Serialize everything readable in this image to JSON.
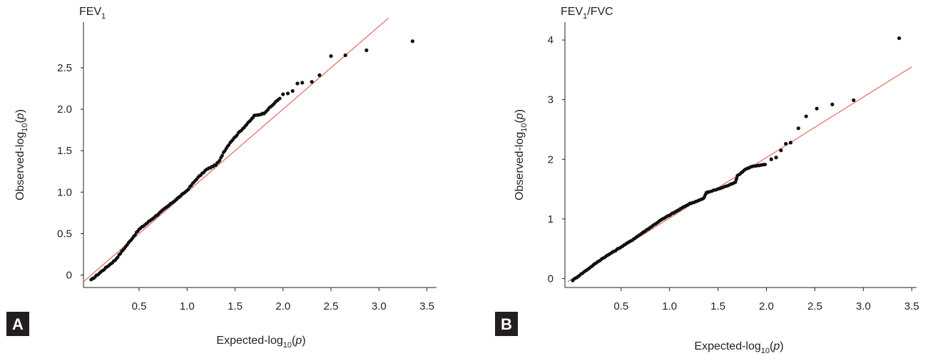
{
  "chart_data": [
    {
      "panel_label": "A",
      "type": "scatter",
      "title": "FEV",
      "title_sub": "1",
      "title_tail": "",
      "xlabel": {
        "pre": "Expected-log",
        "sub": "10",
        "post": "(",
        "var": "p",
        "close": ")"
      },
      "ylabel": {
        "pre": "Observed-log",
        "sub": "10",
        "post": "(",
        "var": "p",
        "close": ")"
      },
      "xlim": [
        -0.08,
        3.6
      ],
      "ylim": [
        -0.15,
        3.05
      ],
      "xticks": [
        "0.5",
        "1.0",
        "1.5",
        "2.0",
        "2.5",
        "3.0",
        "3.5"
      ],
      "xtick_values": [
        0.5,
        1.0,
        1.5,
        2.0,
        2.5,
        3.0,
        3.5
      ],
      "yticks": [
        "0",
        "0.5",
        "1.0",
        "1.5",
        "2.0",
        "2.5"
      ],
      "ytick_values": [
        0,
        0.5,
        1.0,
        1.5,
        2.0,
        2.5
      ],
      "reference_line": {
        "x": [
          -0.08,
          3.1
        ],
        "y": [
          -0.08,
          3.1
        ],
        "color": "#e06b60"
      },
      "point_color": "#111111",
      "trend": [
        [
          0.0,
          -0.06
        ],
        [
          0.25,
          0.18
        ],
        [
          0.5,
          0.55
        ],
        [
          0.8,
          0.83
        ],
        [
          1.0,
          1.02
        ],
        [
          1.1,
          1.16
        ],
        [
          1.2,
          1.27
        ],
        [
          1.3,
          1.33
        ],
        [
          1.34,
          1.38
        ],
        [
          1.38,
          1.48
        ],
        [
          1.45,
          1.6
        ],
        [
          1.55,
          1.73
        ],
        [
          1.65,
          1.85
        ],
        [
          1.7,
          1.92
        ],
        [
          1.8,
          1.95
        ],
        [
          1.9,
          2.06
        ],
        [
          1.98,
          2.15
        ]
      ],
      "outliers": [
        [
          2.0,
          2.18
        ],
        [
          2.05,
          2.19
        ],
        [
          2.1,
          2.22
        ],
        [
          2.15,
          2.31
        ],
        [
          2.2,
          2.32
        ],
        [
          2.3,
          2.33
        ],
        [
          2.38,
          2.41
        ],
        [
          2.5,
          2.64
        ],
        [
          2.65,
          2.65
        ],
        [
          2.87,
          2.71
        ],
        [
          3.35,
          2.82
        ]
      ]
    },
    {
      "panel_label": "B",
      "type": "scatter",
      "title": "FEV",
      "title_sub": "1",
      "title_tail": "/FVC",
      "xlabel": {
        "pre": "Expected-log",
        "sub": "10",
        "post": "(",
        "var": "p",
        "close": ")"
      },
      "ylabel": {
        "pre": "Observed-log",
        "sub": "10",
        "post": "(",
        "var": "p",
        "close": ")"
      },
      "xlim": [
        -0.08,
        3.55
      ],
      "ylim": [
        -0.15,
        4.3
      ],
      "xticks": [
        "0.5",
        "1.0",
        "1.5",
        "2.0",
        "2.5",
        "3.0",
        "3.5"
      ],
      "xtick_values": [
        0.5,
        1.0,
        1.5,
        2.0,
        2.5,
        3.0,
        3.5
      ],
      "yticks": [
        "0",
        "1",
        "2",
        "3",
        "4"
      ],
      "ytick_values": [
        0,
        1,
        2,
        3,
        4
      ],
      "reference_line": {
        "x": [
          -0.05,
          3.5
        ],
        "y": [
          -0.05,
          3.55
        ],
        "color": "#e06b60"
      },
      "point_color": "#111111",
      "trend": [
        [
          0.0,
          -0.03
        ],
        [
          0.3,
          0.33
        ],
        [
          0.6,
          0.63
        ],
        [
          0.9,
          0.97
        ],
        [
          1.2,
          1.25
        ],
        [
          1.35,
          1.34
        ],
        [
          1.38,
          1.44
        ],
        [
          1.5,
          1.5
        ],
        [
          1.62,
          1.57
        ],
        [
          1.68,
          1.62
        ],
        [
          1.7,
          1.72
        ],
        [
          1.78,
          1.83
        ],
        [
          1.85,
          1.88
        ],
        [
          1.95,
          1.9
        ],
        [
          2.0,
          1.92
        ]
      ],
      "outliers": [
        [
          2.05,
          2.0
        ],
        [
          2.1,
          2.03
        ],
        [
          2.15,
          2.15
        ],
        [
          2.2,
          2.26
        ],
        [
          2.25,
          2.28
        ],
        [
          2.33,
          2.52
        ],
        [
          2.41,
          2.72
        ],
        [
          2.52,
          2.85
        ],
        [
          2.68,
          2.92
        ],
        [
          2.9,
          2.99
        ],
        [
          3.37,
          4.03
        ]
      ]
    }
  ]
}
